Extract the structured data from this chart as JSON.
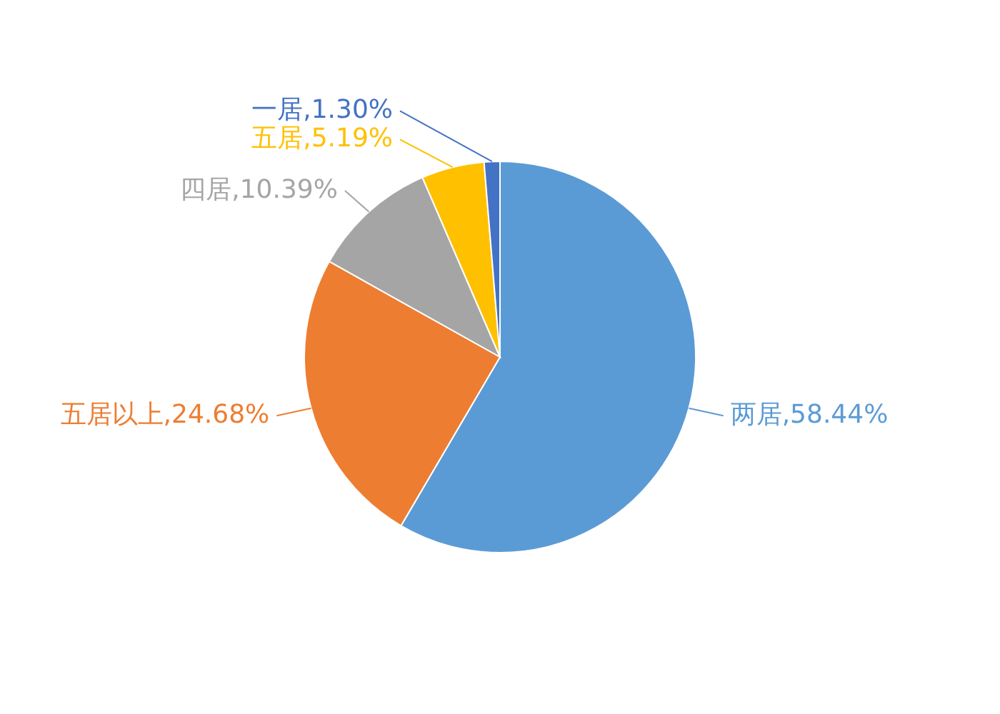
{
  "chart_data": {
    "type": "pie",
    "categories": [
      "两居",
      "五居以上",
      "四居",
      "五居",
      "一居"
    ],
    "values": [
      58.44,
      24.68,
      10.39,
      5.19,
      1.3
    ],
    "value_labels": [
      "58.44%",
      "24.68%",
      "10.39%",
      "5.19%",
      "1.30%"
    ],
    "colors": [
      "#5b9bd5",
      "#ed7d31",
      "#a5a5a5",
      "#ffc000",
      "#4472c4"
    ]
  }
}
